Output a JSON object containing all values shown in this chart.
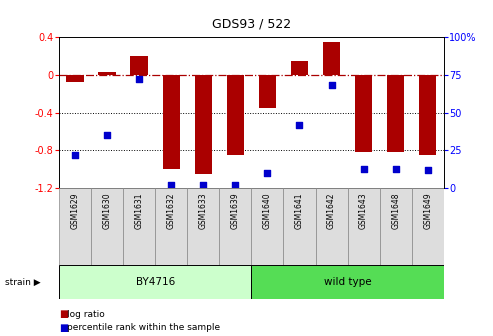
{
  "title": "GDS93 / 522",
  "samples": [
    "GSM1629",
    "GSM1630",
    "GSM1631",
    "GSM1632",
    "GSM1633",
    "GSM1639",
    "GSM1640",
    "GSM1641",
    "GSM1642",
    "GSM1643",
    "GSM1648",
    "GSM1649"
  ],
  "log_ratio": [
    -0.08,
    0.03,
    0.2,
    -1.0,
    -1.05,
    -0.85,
    -0.35,
    0.15,
    0.35,
    -0.82,
    -0.82,
    -0.85
  ],
  "percentile_rank": [
    22,
    35,
    72,
    2,
    2,
    2,
    10,
    42,
    68,
    13,
    13,
    12
  ],
  "bar_color": "#aa0000",
  "dot_color": "#0000cc",
  "ylim_left": [
    -1.2,
    0.4
  ],
  "ylim_right": [
    0,
    100
  ],
  "group1_label": "BY4716",
  "group1_count": 6,
  "group2_label": "wild type",
  "group2_count": 6,
  "group1_color": "#ccffcc",
  "group2_color": "#55dd55",
  "legend1": "log ratio",
  "legend2": "percentile rank within the sample",
  "yticks_left": [
    -1.2,
    -0.8,
    -0.4,
    0.0,
    0.4
  ],
  "yticks_right": [
    0,
    25,
    50,
    75,
    100
  ],
  "ytick_labels_left": [
    "-1.2",
    "-0.8",
    "-0.4",
    "0",
    "0.4"
  ],
  "ytick_labels_right": [
    "0",
    "25",
    "50",
    "75",
    "100%"
  ]
}
